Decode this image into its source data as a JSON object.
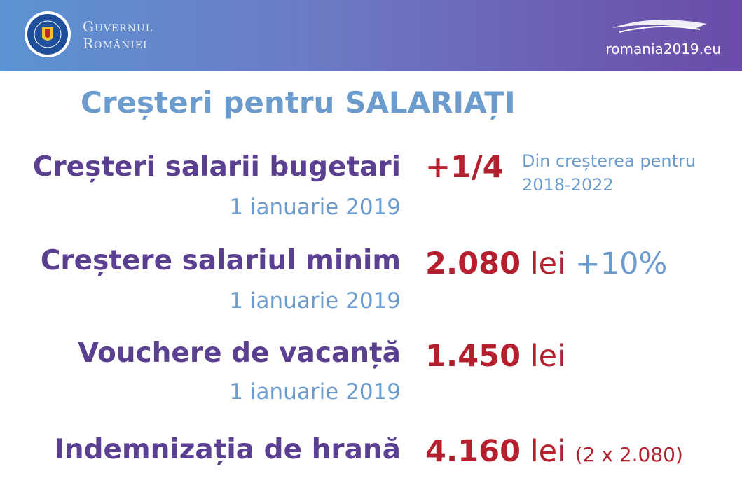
{
  "header": {
    "logo_lines": [
      "Guvernul",
      "României"
    ],
    "site": "romania2019.eu"
  },
  "title": "Creșteri pentru SALARIAȚI",
  "rows": [
    {
      "label": "Creșteri salarii bugetari",
      "date": "1 ianuarie 2019",
      "value": "+1/4",
      "note": [
        "Din creșterea pentru",
        "2018-2022"
      ]
    },
    {
      "label": "Creștere salariul minim",
      "date": "1 ianuarie 2019",
      "value": "2.080",
      "unit": "lei",
      "extra": "+10%"
    },
    {
      "label": "Vouchere de vacanță",
      "date": "1 ianuarie 2019",
      "value": "1.450",
      "unit": "lei"
    },
    {
      "label": "Indemnizația de hrană",
      "value": "4.160",
      "unit": "lei",
      "extra": "(2 x 2.080)"
    }
  ]
}
